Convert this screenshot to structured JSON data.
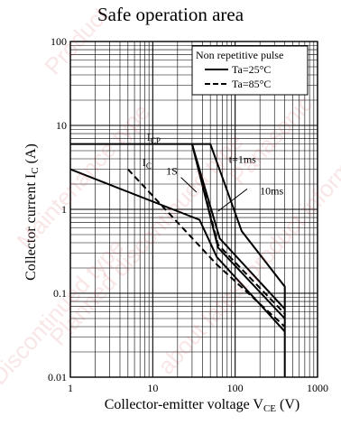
{
  "title": "Safe operation area",
  "xlabel": {
    "main": "Collector-emitter voltage  V",
    "sub": "CE",
    "unit": "  (V)"
  },
  "ylabel": {
    "main": "Collector current  I",
    "sub": "C",
    "unit": "  (A)"
  },
  "watermark": [
    "Discontinued type",
    "Product",
    "Maintenance type",
    "Planned discontinued type",
    "about latest product information",
    "Panasonic"
  ],
  "chart_data": {
    "type": "line",
    "x_scale": "log",
    "y_scale": "log",
    "xlim": [
      1,
      1000
    ],
    "ylim": [
      0.01,
      100
    ],
    "x_ticks": [
      1,
      10,
      100,
      1000
    ],
    "x_tick_labels": [
      "1",
      "10",
      "100",
      "1000"
    ],
    "y_ticks": [
      0.01,
      0.1,
      1,
      10,
      100
    ],
    "y_tick_labels": [
      "0.01",
      "0.1",
      "1",
      "10",
      "100"
    ],
    "grid": true,
    "legend_position": "top-right",
    "legend": {
      "title": "Non repetitive pulse",
      "entries": [
        {
          "label": "Ta=25°C",
          "style": "solid"
        },
        {
          "label": "Ta=85°C",
          "style": "dashed"
        }
      ]
    },
    "series": [
      {
        "name": "Ta=25°C",
        "style": "solid",
        "x": [
          1,
          50,
          120,
          400,
          400
        ],
        "y": [
          6,
          6,
          0.55,
          0.12,
          0.01
        ]
      },
      {
        "name": "Ta=25°C",
        "style": "solid",
        "x": [
          30,
          65,
          400
        ],
        "y": [
          6,
          0.45,
          0.065
        ]
      },
      {
        "name": "Ta=25°C",
        "style": "solid",
        "x": [
          30,
          62,
          400
        ],
        "y": [
          6,
          0.35,
          0.05
        ]
      },
      {
        "name": "Ta=25°C",
        "style": "solid",
        "x": [
          1,
          37,
          60,
          400
        ],
        "y": [
          3,
          0.75,
          0.27,
          0.035
        ]
      },
      {
        "name": "Ta=85°C",
        "style": "dashed",
        "x": [
          30,
          62,
          400
        ],
        "y": [
          6,
          0.38,
          0.057
        ]
      },
      {
        "name": "Ta=85°C",
        "style": "dashed",
        "x": [
          5,
          60,
          400
        ],
        "y": [
          3,
          0.22,
          0.04
        ]
      }
    ],
    "annotations": [
      {
        "text": "I",
        "sub": "CP",
        "x": 8.5,
        "y": 6.6
      },
      {
        "text": "I",
        "sub": "C",
        "x": 7.5,
        "y": 3.3
      },
      {
        "text": "1S",
        "x": 14.5,
        "y": 2.6
      },
      {
        "text": "t=1ms",
        "x": 84,
        "y": 3.6
      },
      {
        "text": "10ms",
        "x": 200,
        "y": 1.5
      }
    ]
  }
}
